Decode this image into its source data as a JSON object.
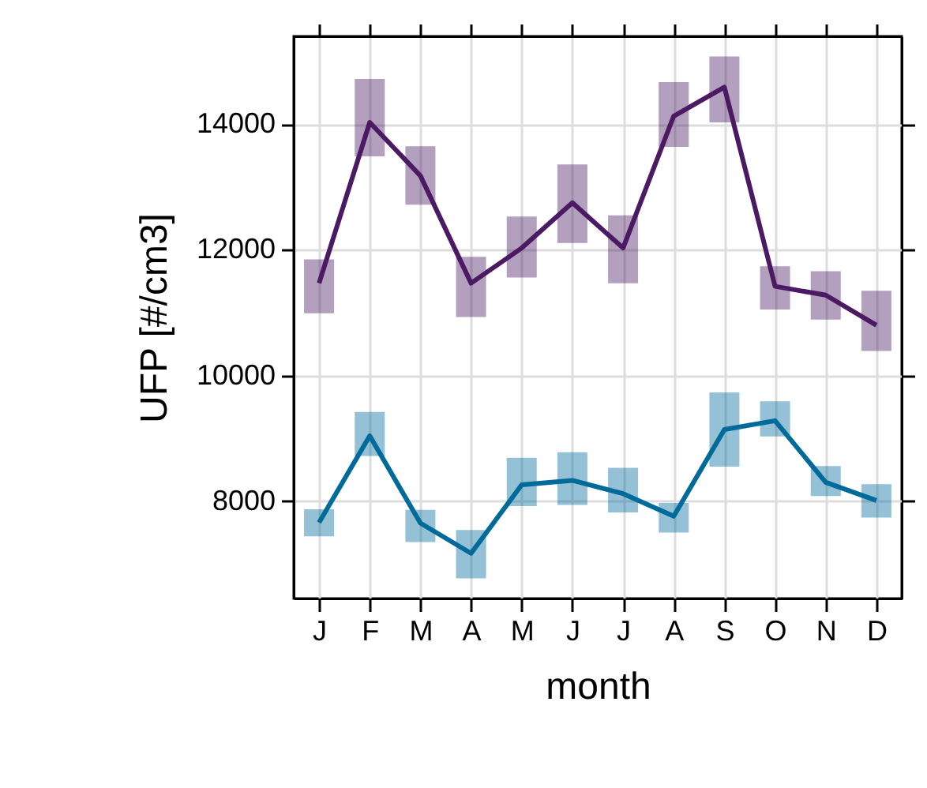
{
  "chart_data": {
    "type": "line",
    "xlabel": "month",
    "ylabel": "UFP [#/cm3]",
    "categories": [
      "J",
      "F",
      "M",
      "A",
      "M",
      "J",
      "J",
      "A",
      "S",
      "O",
      "N",
      "D"
    ],
    "ylim": [
      6450,
      15400
    ],
    "yticks": [
      8000,
      10000,
      12000,
      14000
    ],
    "grid": true,
    "marker": "none",
    "line_style": "solid",
    "series": [
      {
        "color": "#4b1a63",
        "values": [
          11470,
          14030,
          13180,
          11470,
          12030,
          12750,
          12030,
          14130,
          14590,
          11420,
          11280,
          10800
        ],
        "errors": [
          [
            10990,
            11850
          ],
          [
            13490,
            14720
          ],
          [
            12720,
            13650
          ],
          [
            10930,
            11890
          ],
          [
            11560,
            12530
          ],
          [
            12110,
            13360
          ],
          [
            11470,
            12550
          ],
          [
            13640,
            14670
          ],
          [
            14030,
            15080
          ],
          [
            11050,
            11740
          ],
          [
            10890,
            11660
          ],
          [
            10390,
            11350
          ]
        ]
      },
      {
        "color": "#006b9a",
        "values": [
          7660,
          9040,
          7650,
          7170,
          8260,
          8330,
          8120,
          7760,
          9140,
          9280,
          8300,
          8010
        ],
        "errors": [
          [
            7440,
            7870
          ],
          [
            8720,
            9420
          ],
          [
            7350,
            7860
          ],
          [
            6770,
            7540
          ],
          [
            7920,
            8690
          ],
          [
            7940,
            8780
          ],
          [
            7820,
            8530
          ],
          [
            7500,
            7970
          ],
          [
            8550,
            9730
          ],
          [
            9030,
            9590
          ],
          [
            8080,
            8560
          ],
          [
            7740,
            8270
          ]
        ]
      }
    ]
  }
}
